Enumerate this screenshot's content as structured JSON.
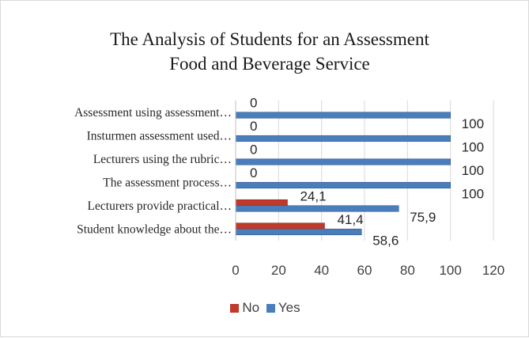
{
  "chart_data": {
    "type": "bar",
    "orientation": "horizontal",
    "title": "The Analysis of Students for an Assessment Food and Beverage Service",
    "title_lines": [
      "The Analysis of Students for an Assessment",
      "Food and Beverage Service"
    ],
    "categories": [
      "Assessment using assessment…",
      "Insturmen assessment used…",
      "Lecturers using the rubric…",
      "The assessment process…",
      "Lecturers provide practical…",
      "Student knowledge about the…"
    ],
    "series": [
      {
        "name": "No",
        "color": "#c0392b",
        "values": [
          0,
          0,
          0,
          0,
          24.1,
          41.4
        ],
        "labels": [
          "0",
          "0",
          "0",
          "0",
          "24,1",
          "41,4"
        ]
      },
      {
        "name": "Yes",
        "color": "#4a7ebb",
        "values": [
          100,
          100,
          100,
          100,
          75.9,
          58.6
        ],
        "labels": [
          "100",
          "100",
          "100",
          "100",
          "75,9",
          "58,6"
        ]
      }
    ],
    "xlim": [
      0,
      120
    ],
    "xticks": [
      0,
      20,
      40,
      60,
      80,
      100,
      120
    ],
    "xticks_labels": [
      "0",
      "20",
      "40",
      "60",
      "80",
      "100",
      "120"
    ],
    "grid": true,
    "legend": "bottom"
  }
}
